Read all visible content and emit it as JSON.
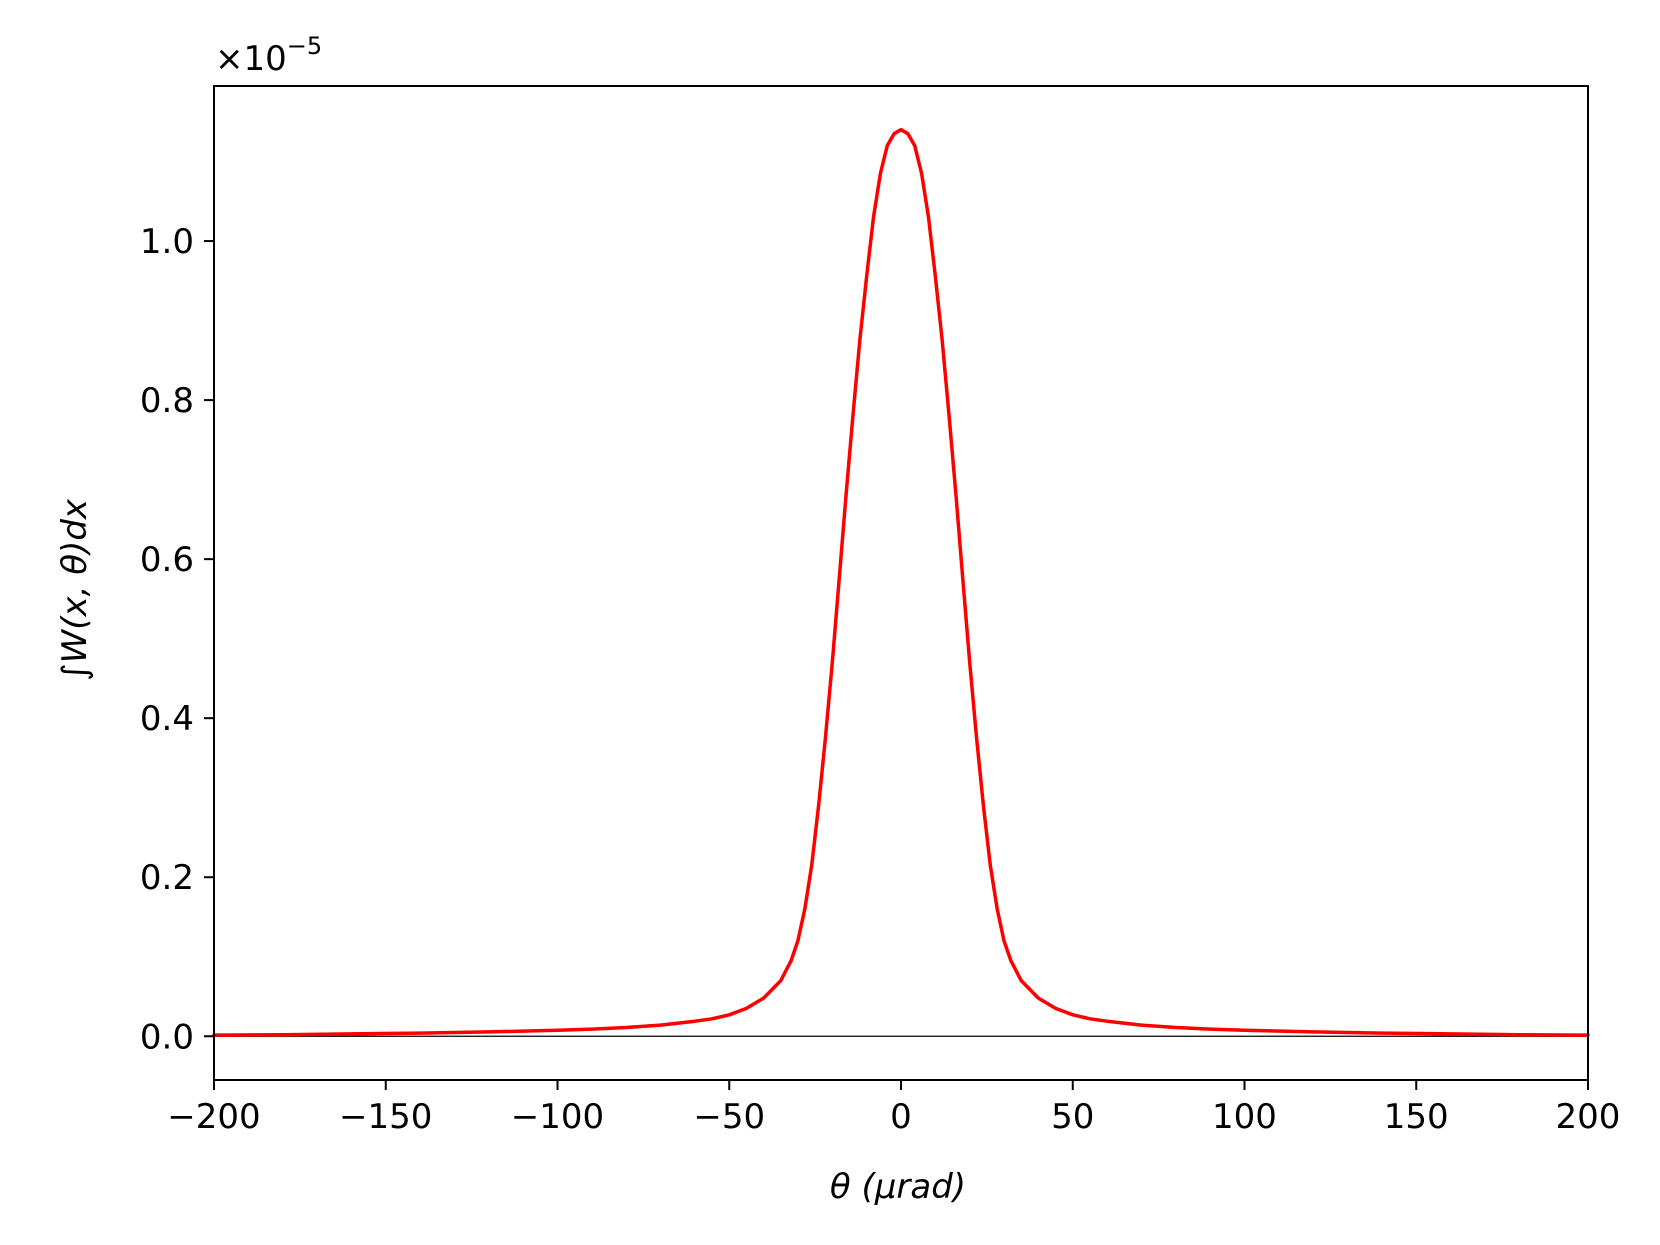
{
  "chart_data": {
    "type": "line",
    "xlabel": "θ  (μrad)",
    "ylabel": "∫W(x, θ)dx",
    "y_offset_text": {
      "base": "×10",
      "exponent": "−5"
    },
    "xlim": [
      -200,
      200
    ],
    "ylim": [
      -0.055,
      1.195
    ],
    "x_ticks": [
      -200,
      -150,
      -100,
      -50,
      0,
      50,
      100,
      150,
      200
    ],
    "x_tick_labels": [
      "−200",
      "−150",
      "−100",
      "−50",
      "0",
      "50",
      "100",
      "150",
      "200"
    ],
    "y_ticks": [
      0.0,
      0.2,
      0.4,
      0.6,
      0.8,
      1.0
    ],
    "y_tick_labels": [
      "0.0",
      "0.2",
      "0.4",
      "0.6",
      "0.8",
      "1.0"
    ],
    "grid": false,
    "zero_line": true,
    "series": [
      {
        "color": "#ff0000",
        "x": [
          -200,
          -180,
          -160,
          -140,
          -120,
          -100,
          -90,
          -80,
          -70,
          -60,
          -55,
          -50,
          -45,
          -40,
          -35,
          -32,
          -30,
          -28,
          -26,
          -24,
          -22,
          -20,
          -18,
          -16,
          -14,
          -12,
          -10,
          -8,
          -6,
          -4,
          -2,
          0,
          2,
          4,
          6,
          8,
          10,
          12,
          14,
          16,
          18,
          20,
          22,
          24,
          26,
          28,
          30,
          32,
          35,
          40,
          45,
          50,
          55,
          60,
          70,
          80,
          90,
          100,
          120,
          140,
          160,
          180,
          200
        ],
        "y": [
          0.0015,
          0.002,
          0.003,
          0.004,
          0.0055,
          0.0075,
          0.009,
          0.011,
          0.014,
          0.019,
          0.022,
          0.027,
          0.035,
          0.048,
          0.07,
          0.095,
          0.12,
          0.16,
          0.215,
          0.29,
          0.375,
          0.47,
          0.575,
          0.68,
          0.78,
          0.875,
          0.955,
          1.03,
          1.085,
          1.12,
          1.135,
          1.14,
          1.135,
          1.12,
          1.085,
          1.03,
          0.955,
          0.875,
          0.78,
          0.68,
          0.575,
          0.47,
          0.375,
          0.29,
          0.215,
          0.16,
          0.12,
          0.095,
          0.07,
          0.048,
          0.035,
          0.027,
          0.022,
          0.019,
          0.014,
          0.011,
          0.009,
          0.0075,
          0.0055,
          0.004,
          0.003,
          0.002,
          0.0015
        ]
      }
    ]
  }
}
